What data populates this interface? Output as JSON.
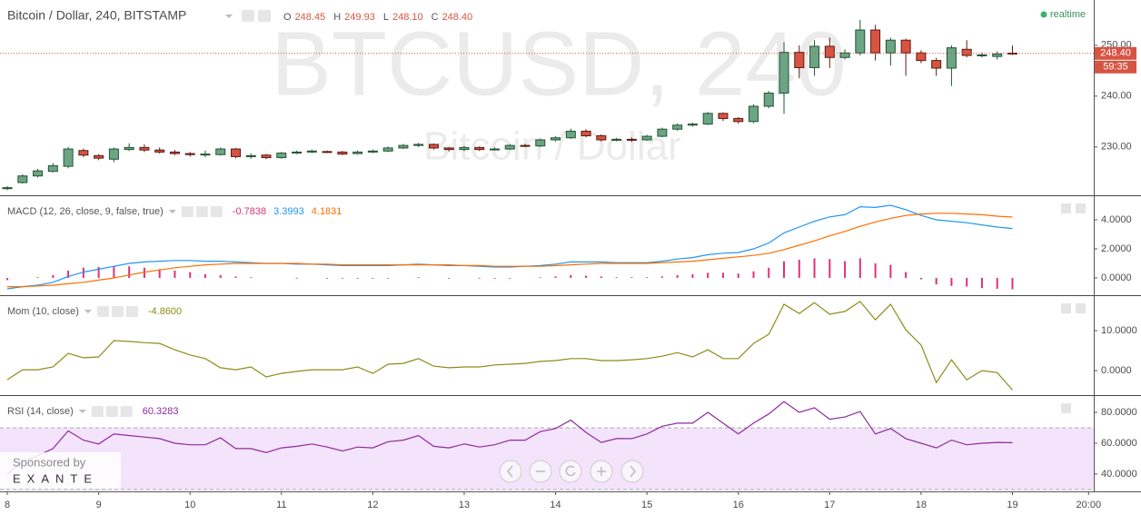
{
  "chart_data": [
    {
      "type": "candlestick",
      "title": "Bitcoin / Dollar, 240, BITSTAMP",
      "ohlc_header": [
        {
          "key": "O",
          "text": "248.45"
        },
        {
          "key": "H",
          "text": "249.93"
        },
        {
          "key": "L",
          "text": "248.10"
        },
        {
          "key": "C",
          "text": "248.40"
        }
      ],
      "watermark": "BTCUSD, 240",
      "watermark_subtitle": "Bitcoin / Dollar",
      "status": "realtime",
      "last_price_label": "248.40",
      "countdown": "59:35",
      "sponsor": "Sponsored by",
      "sponsor_name": "EXANTE",
      "up_color": "#6ba583",
      "up_border": "#225437",
      "down_color": "#d75442",
      "down_border": "#5b1a13",
      "x": [
        8,
        8.1667,
        8.3333,
        8.5,
        8.6667,
        8.8333,
        9,
        9.1667,
        9.3333,
        9.5,
        9.6667,
        9.8333,
        10,
        10.1667,
        10.3333,
        10.5,
        10.6667,
        10.8333,
        11,
        11.1667,
        11.3333,
        11.5,
        11.6667,
        11.8333,
        12,
        12.1667,
        12.3333,
        12.5,
        12.6667,
        12.8333,
        13,
        13.1667,
        13.3333,
        13.5,
        13.6667,
        13.8333,
        14,
        14.1667,
        14.3333,
        14.5,
        14.6667,
        14.8333,
        15,
        15.1667,
        15.3333,
        15.5,
        15.6667,
        15.8333,
        16,
        16.1667,
        16.3333,
        16.5,
        16.6667,
        16.8333,
        17,
        17.1667,
        17.3333,
        17.5,
        17.6667,
        17.8333,
        18,
        18.1667,
        18.3333,
        18.5,
        18.6667,
        18.8333,
        19
      ],
      "open": [
        221.8,
        223.0,
        224.3,
        225.2,
        226.2,
        229.3,
        228.3,
        227.6,
        229.5,
        229.9,
        229.4,
        229.0,
        228.7,
        228.5,
        228.5,
        229.6,
        228.1,
        228.4,
        227.9,
        228.8,
        229.0,
        229.1,
        229.0,
        228.7,
        229.0,
        229.2,
        229.8,
        230.3,
        230.5,
        229.8,
        229.5,
        229.9,
        229.5,
        229.6,
        230.3,
        230.2,
        231.4,
        231.8,
        233.1,
        232.2,
        231.4,
        231.5,
        231.4,
        232.1,
        233.5,
        234.3,
        234.5,
        236.6,
        235.6,
        235.0,
        238.0,
        240.6,
        248.6,
        245.6,
        249.8,
        247.6,
        248.5,
        253.0,
        248.5,
        251.0,
        248.5,
        247.0,
        245.5,
        249.2,
        248.0,
        247.8,
        248.45
      ],
      "high": [
        222.3,
        224.6,
        225.7,
        226.8,
        230.0,
        229.7,
        228.6,
        229.9,
        230.7,
        230.5,
        229.9,
        229.4,
        229.0,
        229.3,
        229.9,
        229.8,
        228.7,
        228.6,
        229.0,
        229.3,
        229.5,
        229.3,
        229.2,
        229.3,
        229.5,
        230.1,
        230.6,
        230.8,
        230.7,
        230.0,
        230.2,
        230.1,
        229.9,
        230.6,
        230.6,
        231.7,
        232.1,
        233.6,
        233.5,
        232.5,
        231.8,
        231.9,
        232.4,
        233.8,
        234.6,
        234.8,
        236.9,
        236.8,
        235.9,
        238.4,
        241.0,
        250.6,
        250.0,
        251.0,
        251.5,
        249.2,
        255.0,
        254.0,
        251.5,
        251.3,
        249.0,
        247.5,
        250.0,
        251.0,
        248.6,
        248.8,
        249.93
      ],
      "low": [
        221.5,
        222.8,
        224.0,
        225.0,
        225.8,
        228.0,
        227.4,
        227.0,
        229.2,
        229.0,
        228.7,
        228.4,
        228.1,
        228.0,
        228.3,
        227.8,
        227.7,
        227.6,
        227.7,
        228.6,
        228.8,
        228.8,
        228.4,
        228.5,
        228.8,
        229.0,
        229.6,
        230.0,
        229.5,
        229.1,
        229.2,
        229.2,
        229.3,
        229.4,
        230.0,
        230.0,
        231.1,
        231.6,
        231.9,
        231.1,
        231.1,
        231.0,
        231.2,
        231.9,
        233.2,
        234.0,
        234.3,
        235.1,
        234.6,
        234.7,
        237.6,
        236.5,
        243.5,
        244.0,
        245.5,
        247.2,
        248.0,
        247.0,
        246.0,
        244.0,
        246.5,
        244.0,
        242.0,
        247.6,
        247.6,
        247.2,
        248.1
      ],
      "close": [
        222.0,
        224.3,
        225.3,
        226.3,
        229.6,
        228.4,
        227.8,
        229.6,
        229.9,
        229.4,
        229.0,
        228.7,
        228.5,
        228.6,
        229.6,
        228.1,
        228.3,
        227.9,
        228.8,
        229.0,
        229.2,
        229.0,
        228.6,
        229.0,
        229.2,
        229.8,
        230.3,
        230.5,
        229.8,
        229.5,
        229.9,
        229.5,
        229.6,
        230.3,
        230.2,
        231.4,
        231.8,
        233.1,
        232.2,
        231.4,
        231.5,
        231.4,
        232.1,
        233.5,
        234.3,
        234.5,
        236.6,
        235.6,
        235.0,
        238.0,
        240.6,
        248.6,
        245.6,
        249.8,
        247.6,
        248.5,
        253.0,
        248.5,
        251.0,
        248.5,
        247.0,
        245.5,
        249.5,
        248.0,
        248.1,
        248.3,
        248.4
      ],
      "xlim": [
        7.92,
        19.89
      ],
      "xticks": [
        8,
        9,
        10,
        11,
        12,
        13,
        14,
        15,
        16,
        17,
        18,
        19,
        {
          "value": 19.8333,
          "label": "20:00"
        }
      ],
      "ylim": [
        220.5,
        258.9
      ],
      "yticks": [
        {
          "value": 230,
          "label": "230.00"
        },
        {
          "value": 240,
          "label": "240.00"
        },
        {
          "value": 250,
          "label": "250.00"
        }
      ]
    },
    {
      "type": "line",
      "title": "MACD (12, 26, close, 9, false, true)",
      "ylim": [
        -1.19,
        5.56
      ],
      "yticks": [
        {
          "value": 0,
          "label": "0.0000"
        },
        {
          "value": 2,
          "label": "2.0000"
        },
        {
          "value": 4,
          "label": "4.0000"
        }
      ],
      "series": [
        {
          "style": "histogram",
          "color": "#e0307a",
          "value_label": "-0.7838",
          "values": [
            -0.15,
            0,
            0.05,
            0.2,
            0.5,
            0.7,
            0.75,
            0.8,
            0.8,
            0.7,
            0.6,
            0.5,
            0.4,
            0.25,
            0.2,
            0.1,
            0.05,
            0,
            0,
            -0.05,
            0,
            -0.05,
            -0.05,
            -0.05,
            -0.05,
            -0.05,
            0,
            0.05,
            0,
            -0.05,
            0,
            -0.05,
            -0.05,
            -0.05,
            0,
            0.05,
            0.1,
            0.2,
            0.15,
            0.1,
            0.05,
            0.05,
            0.05,
            0.1,
            0.2,
            0.25,
            0.35,
            0.35,
            0.3,
            0.45,
            0.7,
            1.15,
            1.25,
            1.35,
            1.3,
            1.15,
            1.35,
            1.0,
            0.9,
            0.4,
            -0.1,
            -0.45,
            -0.55,
            -0.6,
            -0.7,
            -0.75,
            -0.7838
          ]
        },
        {
          "style": "line",
          "color": "#2196f3",
          "value_label": "3.3993",
          "values": [
            -0.75,
            -0.6,
            -0.5,
            -0.3,
            0.1,
            0.4,
            0.6,
            0.8,
            1.0,
            1.1,
            1.15,
            1.2,
            1.2,
            1.15,
            1.15,
            1.1,
            1.05,
            1.0,
            1.0,
            0.95,
            0.95,
            0.9,
            0.85,
            0.85,
            0.85,
            0.85,
            0.9,
            0.95,
            0.9,
            0.85,
            0.85,
            0.8,
            0.75,
            0.75,
            0.8,
            0.85,
            0.95,
            1.1,
            1.1,
            1.1,
            1.05,
            1.05,
            1.05,
            1.15,
            1.3,
            1.4,
            1.6,
            1.7,
            1.75,
            2.0,
            2.4,
            3.1,
            3.5,
            3.9,
            4.2,
            4.35,
            4.9,
            4.85,
            5.0,
            4.7,
            4.3,
            4.0,
            3.9,
            3.8,
            3.65,
            3.5,
            3.3993
          ]
        },
        {
          "style": "line",
          "color": "#ff6d00",
          "value_label": "4.1831",
          "values": [
            -0.6,
            -0.6,
            -0.55,
            -0.5,
            -0.4,
            -0.3,
            -0.15,
            0,
            0.2,
            0.4,
            0.55,
            0.7,
            0.8,
            0.9,
            0.95,
            1.0,
            1.0,
            1.0,
            1.0,
            1.0,
            0.95,
            0.95,
            0.9,
            0.9,
            0.9,
            0.9,
            0.9,
            0.9,
            0.9,
            0.9,
            0.85,
            0.85,
            0.8,
            0.8,
            0.8,
            0.8,
            0.85,
            0.9,
            0.95,
            1.0,
            1.0,
            1.0,
            1.0,
            1.05,
            1.1,
            1.15,
            1.25,
            1.35,
            1.45,
            1.55,
            1.7,
            1.95,
            2.25,
            2.55,
            2.9,
            3.2,
            3.55,
            3.85,
            4.1,
            4.3,
            4.4,
            4.45,
            4.45,
            4.4,
            4.35,
            4.25,
            4.1831
          ]
        }
      ]
    },
    {
      "type": "line",
      "title": "Mom (10, close)",
      "ylim": [
        -6.14,
        18.41
      ],
      "yticks": [
        {
          "value": 0,
          "label": "0.0000"
        },
        {
          "value": 10,
          "label": "10.0000"
        }
      ],
      "series": [
        {
          "style": "line",
          "color": "#8c8c1a",
          "value_label": "-4.8600",
          "values": [
            -2.3,
            0.2,
            0.2,
            0.9,
            4.3,
            3.2,
            3.4,
            7.5,
            7.3,
            7.0,
            6.8,
            5.2,
            3.9,
            3.0,
            0.7,
            0.2,
            0.9,
            -1.6,
            -0.7,
            -0.2,
            0.2,
            0.2,
            0.2,
            0.9,
            -0.7,
            1.6,
            1.8,
            3.0,
            1.1,
            0.7,
            0.9,
            0.9,
            1.4,
            1.6,
            1.8,
            2.3,
            2.5,
            3.0,
            3.0,
            2.5,
            2.5,
            2.7,
            3.0,
            3.6,
            4.5,
            3.4,
            5.2,
            3.0,
            3.0,
            6.8,
            9.1,
            16.6,
            14.3,
            17.0,
            14.1,
            14.8,
            17.3,
            12.7,
            16.6,
            10.2,
            6.4,
            -3.0,
            2.7,
            -2.3,
            0,
            -0.5,
            -4.86
          ]
        }
      ]
    },
    {
      "type": "line",
      "title": "RSI (14, close)",
      "ylim": [
        28.8,
        90
      ],
      "yticks": [
        {
          "value": 40,
          "label": "40.0000"
        },
        {
          "value": 60,
          "label": "60.0000"
        },
        {
          "value": 80,
          "label": "80.0000"
        }
      ],
      "band": [
        30,
        70
      ],
      "band_color": "#f3e4fb",
      "series": [
        {
          "style": "line",
          "color": "#8e2a9e",
          "value_label": "60.3283",
          "values": [
            40,
            48,
            52,
            56.5,
            68,
            62,
            59.5,
            66,
            65,
            64,
            63,
            60,
            59,
            59,
            63.5,
            56.5,
            56.5,
            54,
            57,
            58,
            59.5,
            57.5,
            55,
            57.5,
            57,
            61,
            62,
            65,
            58,
            57,
            59.5,
            57.5,
            59,
            62,
            62,
            67.5,
            69.5,
            75,
            67,
            60.5,
            63,
            63,
            66,
            71,
            73,
            73,
            80,
            73,
            66,
            73,
            79,
            87,
            80,
            83,
            75.5,
            77,
            80.5,
            66,
            69.5,
            63,
            60,
            57,
            62,
            59,
            60,
            60.5,
            60.3283
          ]
        }
      ]
    }
  ]
}
